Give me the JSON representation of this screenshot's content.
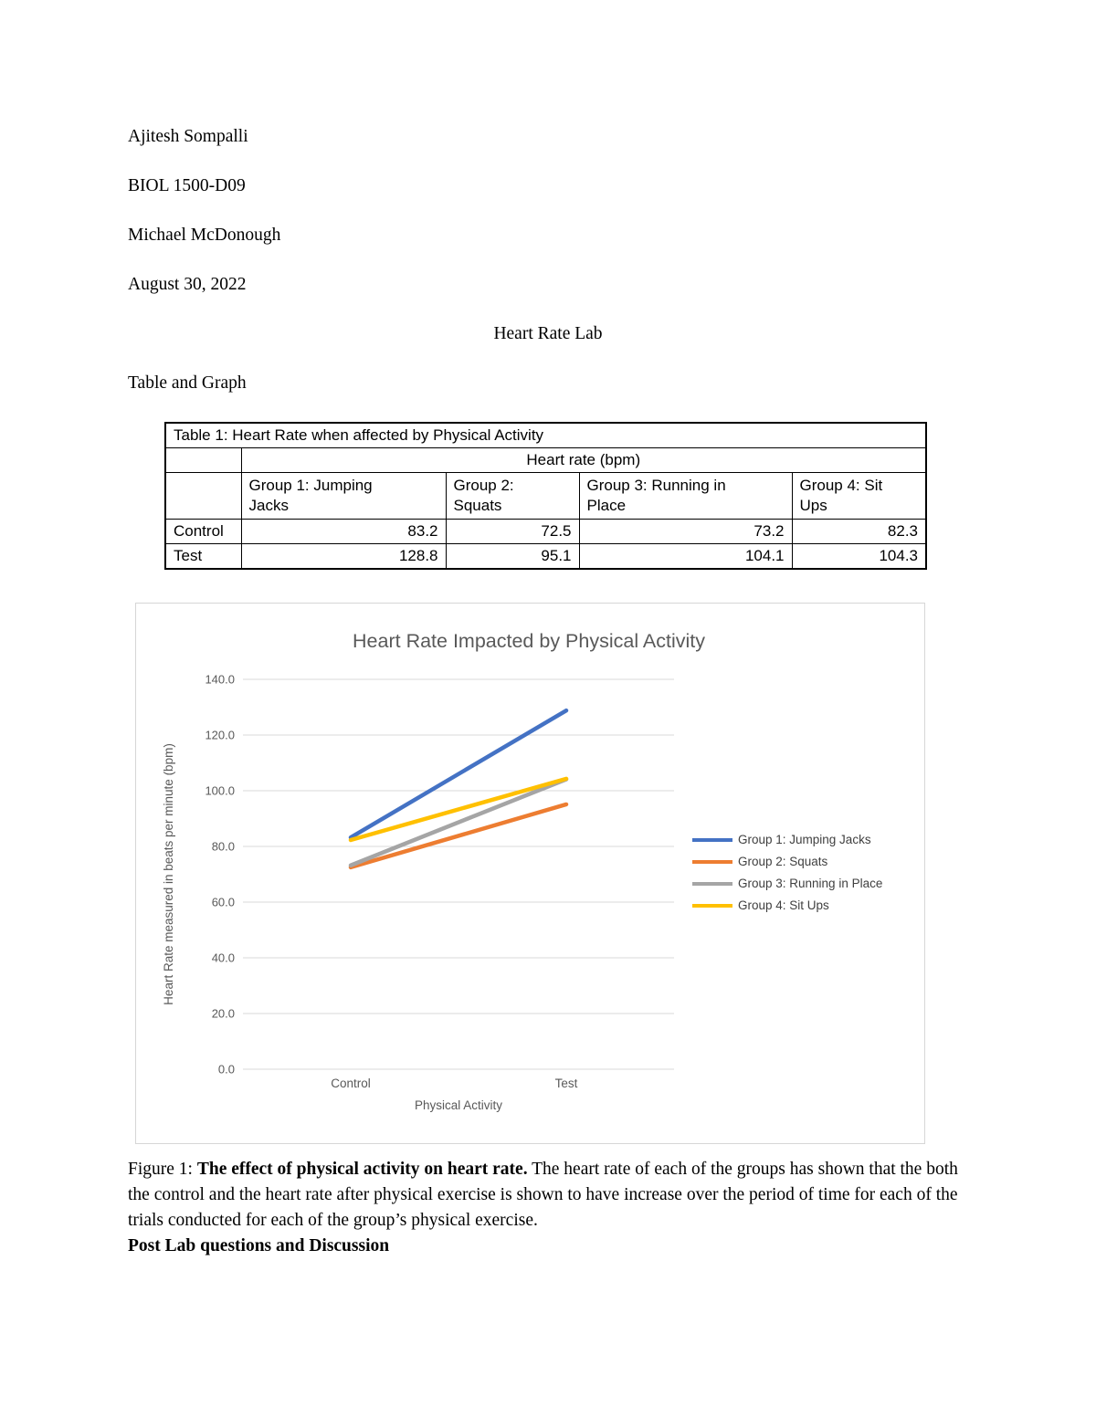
{
  "doc": {
    "author": "Ajitesh Sompalli",
    "course": "BIOL 1500-D09",
    "instructor": "Michael McDonough",
    "date": "August 30, 2022",
    "title": "Heart Rate Lab",
    "section_heading": "Table and Graph"
  },
  "table": {
    "caption": "Table 1: Heart Rate when affected by Physical Activity",
    "unit_header": "Heart rate (bpm)",
    "column_headers": [
      "Group 1: Jumping Jacks",
      "Group 2: Squats",
      "Group 3: Running in Place",
      "Group 4: Sit Ups"
    ],
    "rows": [
      {
        "label": "Control",
        "values": [
          "83.2",
          "72.5",
          "73.2",
          "82.3"
        ]
      },
      {
        "label": "Test",
        "values": [
          "128.8",
          "95.1",
          "104.1",
          "104.3"
        ]
      }
    ]
  },
  "chart_data": {
    "type": "line",
    "title": "Heart Rate Impacted by Physical Activity",
    "categories": [
      "Control",
      "Test"
    ],
    "series": [
      {
        "name": "Group 1: Jumping Jacks",
        "values": [
          83.2,
          128.8
        ],
        "color": "#4472C4"
      },
      {
        "name": "Group 2: Squats",
        "values": [
          72.5,
          95.1
        ],
        "color": "#ED7D31"
      },
      {
        "name": "Group 3: Running in Place",
        "values": [
          73.2,
          104.1
        ],
        "color": "#A5A5A5"
      },
      {
        "name": "Group 4: Sit Ups",
        "values": [
          82.3,
          104.3
        ],
        "color": "#FFC000"
      }
    ],
    "xlabel": "Physical Activity",
    "ylabel": "Heart Rate measured in beats per minute (bpm)",
    "ylim": [
      0,
      140
    ],
    "ytick_step": 20,
    "ytick_labels": [
      "0.0",
      "20.0",
      "40.0",
      "60.0",
      "80.0",
      "100.0",
      "120.0",
      "140.0"
    ],
    "legend_position": "right",
    "grid": true
  },
  "figure_caption": {
    "prefix": "Figure 1: ",
    "bold": "The effect of physical activity on heart rate.",
    "rest": " The heart rate of each of the groups has shown that the both the control and the heart rate after physical exercise is shown to have increase over the period of time for each of the trials conducted for each of the group’s physical exercise."
  },
  "post_lab_heading": "Post Lab questions and Discussion"
}
